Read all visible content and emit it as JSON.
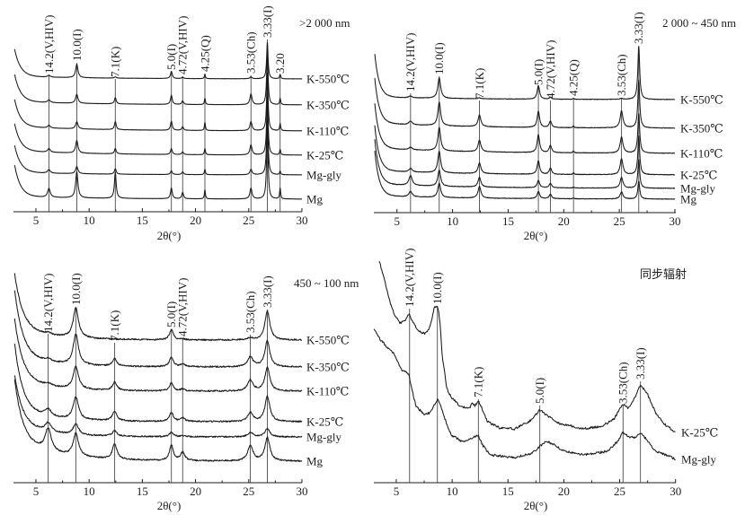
{
  "chart_data": [
    {
      "type": "line",
      "panel": "top-left",
      "title": ">2 000 nm",
      "xlabel": "2θ(°)",
      "ylabel": "",
      "xlim": [
        3,
        30
      ],
      "xticks": [
        5,
        10,
        15,
        20,
        25,
        30
      ],
      "grid": false,
      "legend": "right, labels at line ends",
      "intensity_units": "arbitrary (curves vertically offset)",
      "reflections": [
        {
          "label": "14.2(V,HIV)",
          "two_theta": 6.22,
          "hwhm": 0.15
        },
        {
          "label": "10.0(I)",
          "two_theta": 8.84,
          "hwhm": 0.13
        },
        {
          "label": "7.1(K)",
          "two_theta": 12.46,
          "hwhm": 0.1
        },
        {
          "label": "5.0(I)",
          "two_theta": 17.73,
          "hwhm": 0.1
        },
        {
          "label": "4.72(V,HIV)",
          "two_theta": 18.79,
          "hwhm": 0.1
        },
        {
          "label": "4.25(Q)",
          "two_theta": 20.88,
          "hwhm": 0.06
        },
        {
          "label": "3.53(Ch)",
          "two_theta": 25.21,
          "hwhm": 0.12
        },
        {
          "label": "3.33(I)",
          "two_theta": 26.75,
          "hwhm": 0.08
        },
        {
          "label": "3.20",
          "two_theta": 27.95,
          "hwhm": 0.06
        }
      ],
      "series": [
        {
          "name": "K-550℃",
          "low_angle_rise": 60,
          "rise_decay": 0.55,
          "background": 6,
          "background_decay": 8,
          "intensities": [
            4,
            30,
            3,
            16,
            3,
            10,
            4,
            82,
            10
          ]
        },
        {
          "name": "K-350℃",
          "low_angle_rise": 60,
          "rise_decay": 0.55,
          "background": 8,
          "background_decay": 8,
          "intensities": [
            6,
            20,
            14,
            20,
            8,
            14,
            24,
            120,
            14
          ]
        },
        {
          "name": "K-110℃",
          "low_angle_rise": 60,
          "rise_decay": 0.55,
          "background": 10,
          "background_decay": 8,
          "intensities": [
            6,
            16,
            18,
            20,
            8,
            18,
            20,
            130,
            16
          ]
        },
        {
          "name": "K-25℃",
          "low_angle_rise": 60,
          "rise_decay": 0.55,
          "background": 10,
          "background_decay": 8,
          "intensities": [
            8,
            28,
            12,
            13,
            6,
            14,
            22,
            140,
            12
          ]
        },
        {
          "name": "Mg-gly",
          "low_angle_rise": 60,
          "rise_decay": 0.55,
          "background": 6,
          "background_decay": 8,
          "intensities": [
            8,
            16,
            12,
            8,
            6,
            12,
            12,
            150,
            8
          ]
        },
        {
          "name": "Mg",
          "low_angle_rise": 70,
          "rise_decay": 0.55,
          "background": 6,
          "background_decay": 8,
          "intensities": [
            20,
            58,
            58,
            24,
            14,
            20,
            24,
            170,
            24
          ]
        }
      ]
    },
    {
      "type": "line",
      "panel": "top-right",
      "title": "2 000 ~ 450 nm",
      "xlabel": "2θ(°)",
      "ylabel": "",
      "xlim": [
        3,
        30
      ],
      "xticks": [
        5,
        10,
        15,
        20,
        25,
        30
      ],
      "grid": false,
      "legend": "right, labels at line ends",
      "intensity_units": "arbitrary (curves vertically offset)",
      "reflections": [
        {
          "label": "14.2(V,HIV)",
          "two_theta": 6.22,
          "hwhm": 0.18
        },
        {
          "label": "10.0(I)",
          "two_theta": 8.8,
          "hwhm": 0.15
        },
        {
          "label": "7.1(K)",
          "two_theta": 12.42,
          "hwhm": 0.15
        },
        {
          "label": "5.0(I)",
          "two_theta": 17.72,
          "hwhm": 0.13
        },
        {
          "label": "4.72(V,HIV)",
          "two_theta": 18.8,
          "hwhm": 0.13
        },
        {
          "label": "4.25(Q)",
          "two_theta": 20.88,
          "hwhm": 0.06
        },
        {
          "label": "3.53(Ch)",
          "two_theta": 25.2,
          "hwhm": 0.15
        },
        {
          "label": "3.33(I)",
          "two_theta": 26.75,
          "hwhm": 0.1
        }
      ],
      "series": [
        {
          "name": "K-550℃",
          "low_angle_rise": 96,
          "rise_decay": 0.4,
          "background": 6,
          "background_decay": 8,
          "intensities": [
            4,
            46,
            2,
            30,
            4,
            2,
            2,
            118
          ]
        },
        {
          "name": "K-350℃",
          "low_angle_rise": 100,
          "rise_decay": 0.4,
          "background": 12,
          "background_decay": 8,
          "intensities": [
            8,
            52,
            26,
            36,
            14,
            4,
            38,
            106
          ]
        },
        {
          "name": "K-110℃",
          "low_angle_rise": 100,
          "rise_decay": 0.4,
          "background": 12,
          "background_decay": 8,
          "intensities": [
            6,
            52,
            26,
            40,
            16,
            4,
            36,
            88
          ]
        },
        {
          "name": "K-25℃",
          "low_angle_rise": 100,
          "rise_decay": 0.4,
          "background": 10,
          "background_decay": 8,
          "intensities": [
            8,
            48,
            24,
            30,
            14,
            4,
            36,
            86
          ]
        },
        {
          "name": "Mg-gly",
          "low_angle_rise": 100,
          "rise_decay": 0.4,
          "background": 10,
          "background_decay": 8,
          "intensities": [
            22,
            36,
            22,
            16,
            10,
            2,
            24,
            64
          ]
        },
        {
          "name": "Mg",
          "low_angle_rise": 100,
          "rise_decay": 0.4,
          "background": 8,
          "background_decay": 8,
          "intensities": [
            12,
            32,
            26,
            16,
            10,
            2,
            16,
            40
          ]
        }
      ]
    },
    {
      "type": "line",
      "panel": "bottom-left",
      "title": "450 ~ 100 nm",
      "xlabel": "2θ(°)",
      "ylabel": "",
      "xlim": [
        3,
        30
      ],
      "xticks": [
        5,
        10,
        15,
        20,
        25,
        30
      ],
      "grid": false,
      "legend": "right, labels at line ends",
      "intensity_units": "arbitrary (curves vertically offset)",
      "reflections": [
        {
          "label": "14.2(V,HIV)",
          "two_theta": 6.15,
          "hwhm": 0.35
        },
        {
          "label": "10.0(I)",
          "two_theta": 8.75,
          "hwhm": 0.3
        },
        {
          "label": "7.1(K)",
          "two_theta": 12.4,
          "hwhm": 0.25
        },
        {
          "label": "5.0(I)",
          "two_theta": 17.73,
          "hwhm": 0.22
        },
        {
          "label": "4.72(V,HIV)",
          "two_theta": 18.79,
          "hwhm": 0.25
        },
        {
          "label": "3.53(Ch)",
          "two_theta": 25.15,
          "hwhm": 0.3
        },
        {
          "label": "3.33(I)",
          "two_theta": 26.75,
          "hwhm": 0.28
        }
      ],
      "series": [
        {
          "name": "K-550℃",
          "low_angle_rise": 120,
          "rise_decay": 0.75,
          "background": 28,
          "background_decay": 3.5,
          "intensities": [
            4,
            66,
            0,
            22,
            2,
            4,
            64
          ]
        },
        {
          "name": "K-350℃",
          "low_angle_rise": 144,
          "rise_decay": 0.75,
          "background": 28,
          "background_decay": 3.5,
          "intensities": [
            6,
            68,
            16,
            22,
            6,
            22,
            58
          ]
        },
        {
          "name": "K-110℃",
          "low_angle_rise": 134,
          "rise_decay": 0.75,
          "background": 28,
          "background_decay": 3.5,
          "intensities": [
            6,
            50,
            18,
            18,
            4,
            24,
            52
          ]
        },
        {
          "name": "K-25℃",
          "low_angle_rise": 146,
          "rise_decay": 0.75,
          "background": 28,
          "background_decay": 3.5,
          "intensities": [
            16,
            50,
            22,
            20,
            8,
            20,
            56
          ]
        },
        {
          "name": "Mg-gly",
          "low_angle_rise": 110,
          "rise_decay": 0.75,
          "background": 28,
          "background_decay": 3.5,
          "intensities": [
            20,
            24,
            12,
            10,
            2,
            10,
            18
          ]
        },
        {
          "name": "Mg",
          "low_angle_rise": 134,
          "rise_decay": 0.75,
          "background": 48,
          "background_decay": 4,
          "intensities": [
            50,
            50,
            34,
            34,
            18,
            34,
            52
          ]
        }
      ]
    },
    {
      "type": "line",
      "panel": "bottom-right",
      "title": "同步辐射",
      "xlabel": "2θ(°)",
      "ylabel": "",
      "xlim": [
        3,
        30
      ],
      "xticks": [
        5,
        10,
        15,
        20,
        25,
        30
      ],
      "grid": false,
      "legend": "right, labels at line ends",
      "intensity_units": "arbitrary (curves vertically offset)",
      "reflections": [
        {
          "label": "14.2(V,HIV)",
          "two_theta": 6.19
        },
        {
          "label": "10.0(I)",
          "two_theta": 8.68
        },
        {
          "label": "7.1(K)",
          "two_theta": 12.35
        },
        {
          "label": "5.0(I)",
          "two_theta": 17.85
        },
        {
          "label": "3.53(Ch)",
          "two_theta": 25.3
        },
        {
          "label": "3.33(I)",
          "two_theta": 26.86
        }
      ],
      "series": [
        {
          "name": "K-25℃",
          "points": [
            [
              3.46,
              384
            ],
            [
              3.95,
              338
            ],
            [
              4.51,
              284
            ],
            [
              4.92,
              258
            ],
            [
              5.32,
              244
            ],
            [
              5.73,
              248
            ],
            [
              6.05,
              262
            ],
            [
              6.19,
              264
            ],
            [
              6.37,
              250
            ],
            [
              6.94,
              228
            ],
            [
              7.51,
              220
            ],
            [
              7.91,
              230
            ],
            [
              8.15,
              250
            ],
            [
              8.4,
              278
            ],
            [
              8.64,
              282
            ],
            [
              8.8,
              270
            ],
            [
              8.96,
              230
            ],
            [
              9.12,
              170
            ],
            [
              9.53,
              98
            ],
            [
              9.93,
              78
            ],
            [
              10.74,
              58
            ],
            [
              11.55,
              54
            ],
            [
              11.79,
              64
            ],
            [
              12.04,
              60
            ],
            [
              12.35,
              70
            ],
            [
              12.6,
              58
            ],
            [
              13.17,
              24
            ],
            [
              14.22,
              10
            ],
            [
              15.6,
              8
            ],
            [
              16.89,
              24
            ],
            [
              17.86,
              50
            ],
            [
              18.51,
              38
            ],
            [
              19.64,
              20
            ],
            [
              21.74,
              8
            ],
            [
              23.36,
              14
            ],
            [
              24.5,
              30
            ],
            [
              25.14,
              58
            ],
            [
              25.38,
              64
            ],
            [
              25.79,
              54
            ],
            [
              26.35,
              78
            ],
            [
              26.76,
              100
            ],
            [
              26.9,
              104
            ],
            [
              27.41,
              90
            ],
            [
              28.22,
              44
            ],
            [
              29.03,
              18
            ],
            [
              29.59,
              8
            ],
            [
              30,
              0
            ]
          ]
        },
        {
          "name": "Mg-gly",
          "points": [
            [
              3,
              290
            ],
            [
              3.46,
              270
            ],
            [
              4.27,
              248
            ],
            [
              4.75,
              238
            ],
            [
              5.48,
              200
            ],
            [
              6.13,
              190
            ],
            [
              6.37,
              158
            ],
            [
              6.78,
              118
            ],
            [
              7.51,
              100
            ],
            [
              7.99,
              104
            ],
            [
              8.56,
              128
            ],
            [
              8.7,
              134
            ],
            [
              8.96,
              120
            ],
            [
              9.36,
              90
            ],
            [
              9.93,
              54
            ],
            [
              10.98,
              38
            ],
            [
              11.79,
              48
            ],
            [
              12.32,
              54
            ],
            [
              12.77,
              30
            ],
            [
              13.41,
              10
            ],
            [
              15.6,
              4
            ],
            [
              17.21,
              14
            ],
            [
              17.86,
              30
            ],
            [
              18.43,
              40
            ],
            [
              19.07,
              34
            ],
            [
              19.88,
              20
            ],
            [
              21.74,
              10
            ],
            [
              23.93,
              18
            ],
            [
              24.74,
              38
            ],
            [
              25.3,
              60
            ],
            [
              25.79,
              50
            ],
            [
              26.35,
              48
            ],
            [
              26.88,
              58
            ],
            [
              27.41,
              44
            ],
            [
              28.22,
              18
            ],
            [
              29.35,
              8
            ],
            [
              30,
              0
            ]
          ]
        }
      ]
    }
  ]
}
